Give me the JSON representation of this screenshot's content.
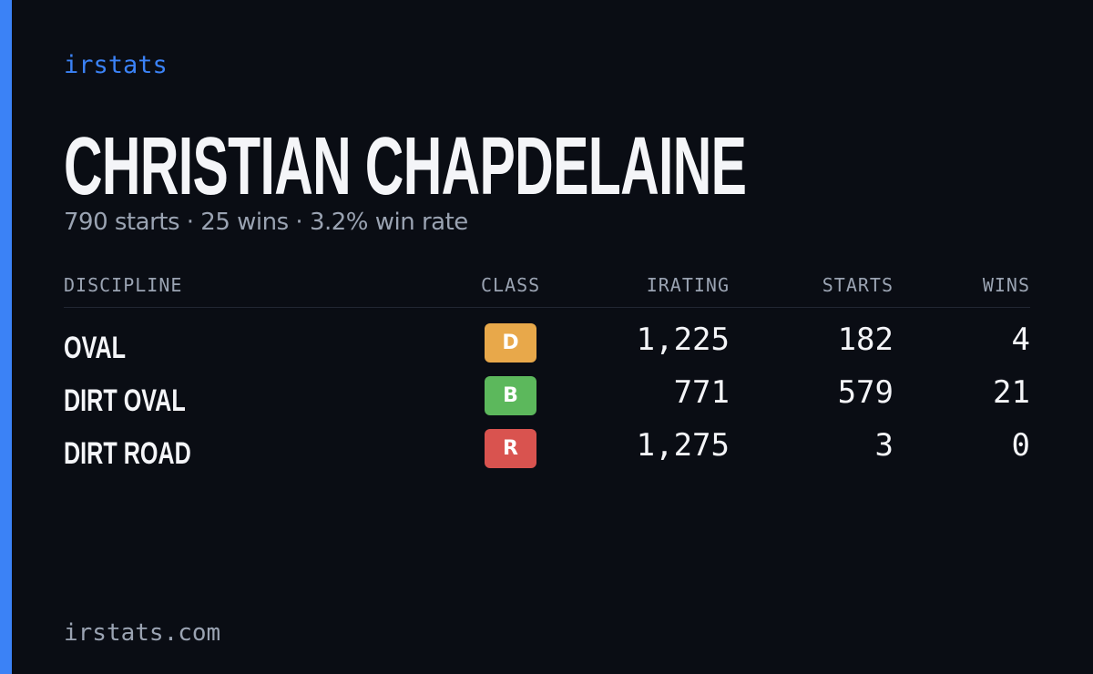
{
  "brand": "irstats",
  "header": {
    "title": "CHRISTIAN CHAPDELAINE",
    "subtitle": "790 starts · 25 wins · 3.2% win rate"
  },
  "table": {
    "columns": [
      "DISCIPLINE",
      "CLASS",
      "IRATING",
      "STARTS",
      "WINS"
    ],
    "rows": [
      [
        "OVAL",
        "D",
        "1,225",
        "182",
        "4"
      ],
      [
        "DIRT OVAL",
        "B",
        "771",
        "579",
        "21"
      ],
      [
        "DIRT ROAD",
        "R",
        "1,275",
        "3",
        "0"
      ]
    ]
  },
  "footer": "irstats.com"
}
